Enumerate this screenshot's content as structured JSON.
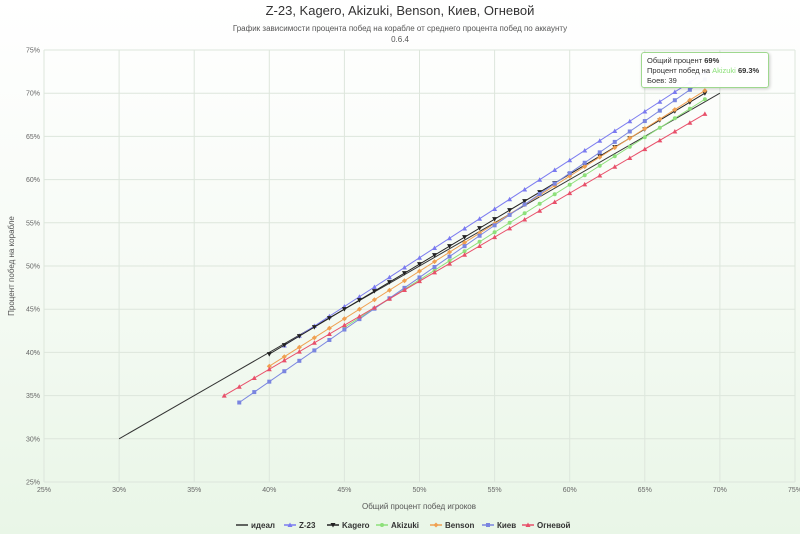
{
  "chart_data": {
    "type": "line",
    "title": "Z-23, Kagero, Akizuki, Benson, Киев, Огневой",
    "subtitle": "График зависимости процента побед на корабле от среднего процента побед по аккаунту",
    "version": "0.6.4",
    "xlabel": "Общий процент побед игроков",
    "ylabel": "Процент побед на корабле",
    "xlim": [
      25,
      75
    ],
    "ylim": [
      25,
      75
    ],
    "xticks": [
      "25%",
      "30%",
      "35%",
      "40%",
      "45%",
      "50%",
      "55%",
      "60%",
      "65%",
      "70%",
      "75%"
    ],
    "yticks": [
      "25%",
      "30%",
      "35%",
      "40%",
      "45%",
      "50%",
      "55%",
      "60%",
      "65%",
      "70%",
      "75%"
    ],
    "grid": true,
    "legend_position": "bottom",
    "series": [
      {
        "name": "идеал",
        "color": "#333333",
        "marker": "none",
        "x": [
          30,
          70
        ],
        "y": [
          30,
          70
        ]
      },
      {
        "name": "Z-23",
        "color": "#7b7bf0",
        "marker": "triangle",
        "x": [
          41,
          69
        ],
        "y": [
          40.8,
          72.4
        ]
      },
      {
        "name": "Kagero",
        "color": "#222222",
        "marker": "triangle-down",
        "x": [
          40,
          69
        ],
        "y": [
          39.8,
          70.0
        ]
      },
      {
        "name": "Akizuki",
        "color": "#8de07a",
        "marker": "circle",
        "x": [
          45,
          69
        ],
        "y": [
          42.9,
          69.3
        ]
      },
      {
        "name": "Benson",
        "color": "#f0a050",
        "marker": "diamond",
        "x": [
          40,
          69
        ],
        "y": [
          38.4,
          70.3
        ]
      },
      {
        "name": "Киев",
        "color": "#7a85e0",
        "marker": "square",
        "x": [
          38,
          69
        ],
        "y": [
          34.2,
          71.6
        ]
      },
      {
        "name": "Огневой",
        "color": "#e8506a",
        "marker": "triangle",
        "x": [
          37,
          69
        ],
        "y": [
          35.0,
          67.6
        ]
      }
    ]
  },
  "tooltip": {
    "line1_prefix": "Общий процент",
    "line1_value": "69%",
    "line2_prefix": "Процент побед на",
    "line2_ship": "Akizuki",
    "line2_value": "69.3%",
    "line3_prefix": "Боев:",
    "line3_value": "39"
  }
}
